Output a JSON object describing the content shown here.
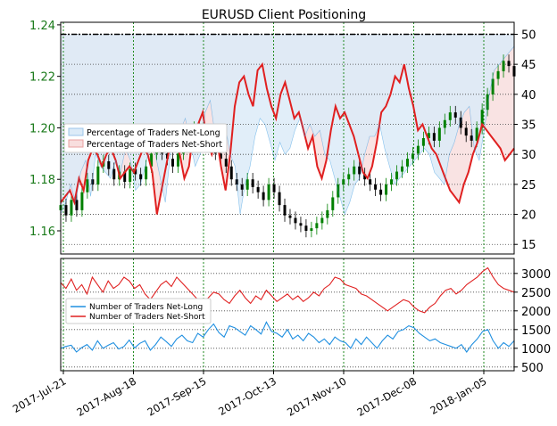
{
  "colors": {
    "long": "#1f8fe0",
    "short": "#e02020",
    "long_fill": "#dcebf8",
    "short_fill": "#f8dede",
    "grid": "#228b22",
    "left_tick": "#1a7a1a",
    "candle_up": "#008000",
    "candle_down": "#000000"
  },
  "chart_data": [
    {
      "type": "line",
      "title": "EURUSD Client Positioning",
      "xlabel": "",
      "ylabel": "",
      "x_tick_labels": [
        "2017-Jul-21",
        "2017-Aug-18",
        "2017-Sep-15",
        "2017-Oct-13",
        "2017-Nov-10",
        "2017-Dec-08",
        "2018-Jan-05"
      ],
      "y_left_ticks": [
        "1.16",
        "1.18",
        "1.20",
        "1.22",
        "1.24"
      ],
      "y_left_range": [
        1.151,
        1.241
      ],
      "y_right_ticks": [
        "15",
        "20",
        "25",
        "30",
        "35",
        "40",
        "45",
        "50"
      ],
      "y_right_range": [
        13.4,
        52.0
      ],
      "reference_line": 50,
      "grid": true,
      "legend_position": "middle-left",
      "series": [
        {
          "name": "Percentage of Traders Net-Long",
          "kind": "area",
          "axis": "right",
          "fill_from": 50,
          "values": [
            20,
            22,
            25,
            22,
            27,
            29,
            23,
            30,
            28,
            27,
            26,
            29,
            27,
            31,
            29,
            24,
            25,
            28,
            32,
            30,
            26,
            22,
            30,
            33,
            34,
            36,
            32,
            28,
            30,
            37,
            39,
            33,
            32,
            35,
            30,
            28,
            20,
            25,
            28,
            33,
            36,
            35,
            32,
            29,
            32,
            30,
            31,
            34,
            36,
            33,
            35,
            33,
            34,
            30,
            29,
            26,
            23,
            20,
            22,
            25,
            26,
            30,
            33,
            33,
            35,
            31,
            28,
            25,
            26,
            27,
            28,
            29,
            30,
            31,
            30,
            27,
            26,
            25,
            30,
            32,
            35,
            37,
            38,
            31,
            29,
            34,
            40,
            44,
            45,
            46,
            47,
            48
          ]
        },
        {
          "name": "Percentage of Traders Net-Short",
          "kind": "area",
          "axis": "right",
          "fill_from": 50,
          "values": [
            22,
            23,
            24,
            22,
            26,
            24,
            29,
            31,
            30,
            28,
            30,
            31,
            29,
            26,
            27,
            28,
            27,
            29,
            31,
            30,
            27,
            20,
            24,
            28,
            32,
            33,
            30,
            26,
            28,
            34,
            35,
            37,
            32,
            30,
            33,
            28,
            24,
            30,
            38,
            42,
            43,
            40,
            38,
            44,
            45,
            41,
            38,
            36,
            40,
            42,
            39,
            36,
            37,
            34,
            31,
            33,
            28,
            26,
            29,
            34,
            38,
            36,
            37,
            35,
            33,
            30,
            27,
            26,
            28,
            32,
            37,
            38,
            40,
            43,
            42,
            45,
            41,
            38,
            34,
            35,
            33,
            31,
            30,
            28,
            26,
            24,
            23,
            22,
            25,
            27,
            30,
            32,
            35,
            34,
            33,
            32,
            31,
            29,
            30,
            31
          ]
        },
        {
          "name": "EURUSD",
          "kind": "candlestick",
          "axis": "left",
          "values": [
            1.17,
            1.166,
            1.172,
            1.168,
            1.175,
            1.18,
            1.178,
            1.185,
            1.187,
            1.184,
            1.18,
            1.183,
            1.179,
            1.184,
            1.182,
            1.18,
            1.185,
            1.19,
            1.195,
            1.19,
            1.188,
            1.185,
            1.19,
            1.193,
            1.196,
            1.2,
            1.198,
            1.195,
            1.193,
            1.19,
            1.188,
            1.185,
            1.18,
            1.178,
            1.176,
            1.18,
            1.177,
            1.175,
            1.172,
            1.178,
            1.175,
            1.17,
            1.166,
            1.165,
            1.163,
            1.162,
            1.16,
            1.161,
            1.163,
            1.165,
            1.168,
            1.173,
            1.178,
            1.18,
            1.182,
            1.185,
            1.182,
            1.18,
            1.178,
            1.176,
            1.174,
            1.178,
            1.18,
            1.183,
            1.185,
            1.188,
            1.19,
            1.193,
            1.196,
            1.198,
            1.195,
            1.2,
            1.203,
            1.206,
            1.204,
            1.2,
            1.197,
            1.195,
            1.2,
            1.207,
            1.213,
            1.219,
            1.222,
            1.226,
            1.224,
            1.22
          ]
        }
      ]
    },
    {
      "type": "line",
      "xlabel": "",
      "ylabel": "",
      "y_right_ticks": [
        "500",
        "1000",
        "1500",
        "2000",
        "2500",
        "3000"
      ],
      "y_right_range": [
        400,
        3400
      ],
      "grid": true,
      "legend_position": "middle-left",
      "series": [
        {
          "name": "Number of Traders Net-Long",
          "values": [
            1000,
            1050,
            1080,
            900,
            1020,
            1100,
            950,
            1200,
            1000,
            1080,
            1150,
            980,
            1050,
            1220,
            1010,
            1130,
            1200,
            950,
            1100,
            1300,
            1180,
            1050,
            1250,
            1350,
            1200,
            1150,
            1400,
            1300,
            1500,
            1650,
            1420,
            1300,
            1600,
            1550,
            1450,
            1350,
            1600,
            1500,
            1380,
            1700,
            1450,
            1400,
            1300,
            1500,
            1250,
            1350,
            1200,
            1400,
            1300,
            1150,
            1250,
            1100,
            1300,
            1200,
            1150,
            1000,
            1250,
            1100,
            1300,
            1150,
            1000,
            1200,
            1350,
            1250,
            1450,
            1500,
            1600,
            1550,
            1400,
            1300,
            1200,
            1250,
            1150,
            1100,
            1050,
            1000,
            1100,
            900,
            1100,
            1250,
            1450,
            1500,
            1200,
            1000,
            1150,
            1050,
            1200
          ]
        },
        {
          "name": "Number of Traders Net-Short",
          "values": [
            2750,
            2600,
            2850,
            2550,
            2700,
            2450,
            2900,
            2700,
            2500,
            2800,
            2600,
            2700,
            2900,
            2800,
            2600,
            2700,
            2450,
            2300,
            2500,
            2700,
            2800,
            2650,
            2900,
            2750,
            2600,
            2450,
            2300,
            2200,
            2350,
            2500,
            2450,
            2300,
            2200,
            2400,
            2550,
            2350,
            2200,
            2400,
            2300,
            2550,
            2400,
            2250,
            2350,
            2450,
            2300,
            2400,
            2250,
            2350,
            2500,
            2400,
            2600,
            2700,
            2900,
            2850,
            2700,
            2650,
            2600,
            2450,
            2400,
            2300,
            2200,
            2100,
            2000,
            2100,
            2200,
            2300,
            2250,
            2100,
            2000,
            1950,
            2100,
            2200,
            2400,
            2550,
            2600,
            2450,
            2550,
            2700,
            2800,
            2900,
            3050,
            3150,
            2900,
            2700,
            2600,
            2550,
            2500
          ]
        }
      ]
    }
  ]
}
